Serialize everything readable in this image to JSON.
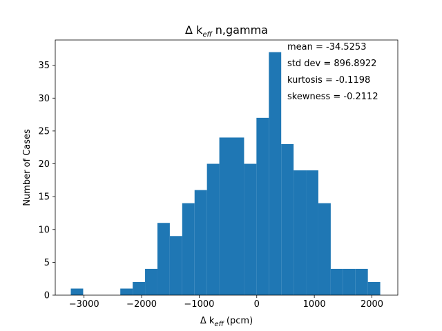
{
  "chart_data": {
    "type": "bar",
    "title_prefix": "Δ k",
    "title_sub": "eff",
    "title_suffix": "  n,gamma",
    "xlabel_prefix": "Δ k",
    "xlabel_sub": "eff",
    "xlabel_suffix": " (pcm)",
    "ylabel": "Number of Cases",
    "bin_edges": [
      -3230,
      -3015,
      -2800,
      -2585,
      -2370,
      -2155,
      -1940,
      -1725,
      -1510,
      -1295,
      -1080,
      -865,
      -650,
      -435,
      -220,
      -5,
      210,
      425,
      640,
      855,
      1070,
      1285,
      1500,
      1715,
      1930,
      2145
    ],
    "counts": [
      1,
      0,
      0,
      0,
      1,
      2,
      4,
      11,
      9,
      14,
      16,
      20,
      24,
      24,
      20,
      27,
      37,
      23,
      19,
      19,
      14,
      4,
      4,
      4,
      2
    ],
    "xlim": [
      -3500,
      2450
    ],
    "ylim": [
      0,
      38.85
    ],
    "xticks": [
      -3000,
      -2000,
      -1000,
      0,
      1000,
      2000
    ],
    "xtick_labels": [
      "−3000",
      "−2000",
      "−1000",
      "0",
      "1000",
      "2000"
    ],
    "yticks": [
      0,
      5,
      10,
      15,
      20,
      25,
      30,
      35
    ],
    "ytick_labels": [
      "0",
      "5",
      "10",
      "15",
      "20",
      "25",
      "30",
      "35"
    ],
    "bar_color": "#1f77b4",
    "stats": [
      "mean = -34.5253",
      "std dev = 896.8922",
      "kurtosis = -0.1198",
      "skewness = -0.2112"
    ]
  }
}
